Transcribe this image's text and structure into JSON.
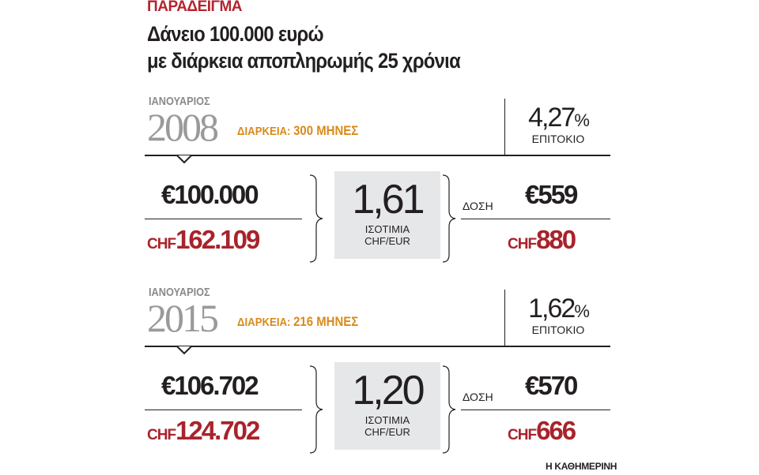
{
  "kicker": "ΠΑΡΑΔΕΙΓΜΑ",
  "title": {
    "line1": "Δάνειο 100.000 ευρώ",
    "line2": "με διάρκεια αποπληρωμής 25 χρόνια"
  },
  "colors": {
    "red": "#a8232b",
    "orange": "#d98a1a",
    "year_gray": "#9a9a9a",
    "box": "#e6e7e8"
  },
  "sections": [
    {
      "month": "ΙΑΝΟΥΑΡΙΟΣ",
      "year": "2008",
      "duration_label": "ΔΙΑΡΚΕΙΑ:",
      "duration_value": "300 ΜΗΝΕΣ",
      "rate": "4,27",
      "rate_unit": "%",
      "rate_label": "ΕΠΙΤΟΚΙΟ",
      "principal_eur": "€100.000",
      "principal_chf_prefix": "CHF",
      "principal_chf": "162.109",
      "exchange_rate": "1,61",
      "exchange_label1": "ΙΣΟΤΙΜΙΑ",
      "exchange_label2": "CHF/EUR",
      "installment_label": "ΔΟΣΗ",
      "installment_eur": "€559",
      "installment_chf_prefix": "CHF",
      "installment_chf": "880"
    },
    {
      "month": "ΙΑΝΟΥΑΡΙΟΣ",
      "year": "2015",
      "duration_label": "ΔΙΑΡΚΕΙΑ:",
      "duration_value": "216 ΜΗΝΕΣ",
      "rate": "1,62",
      "rate_unit": "%",
      "rate_label": "ΕΠΙΤΟΚΙΟ",
      "principal_eur": "€106.702",
      "principal_chf_prefix": "CHF",
      "principal_chf": "124.702",
      "exchange_rate": "1,20",
      "exchange_label1": "ΙΣΟΤΙΜΙΑ",
      "exchange_label2": "CHF/EUR",
      "installment_label": "ΔΟΣΗ",
      "installment_eur": "€570",
      "installment_chf_prefix": "CHF",
      "installment_chf": "666"
    }
  ],
  "footer": "Η ΚΑΘΗΜΕΡΙΝΗ"
}
